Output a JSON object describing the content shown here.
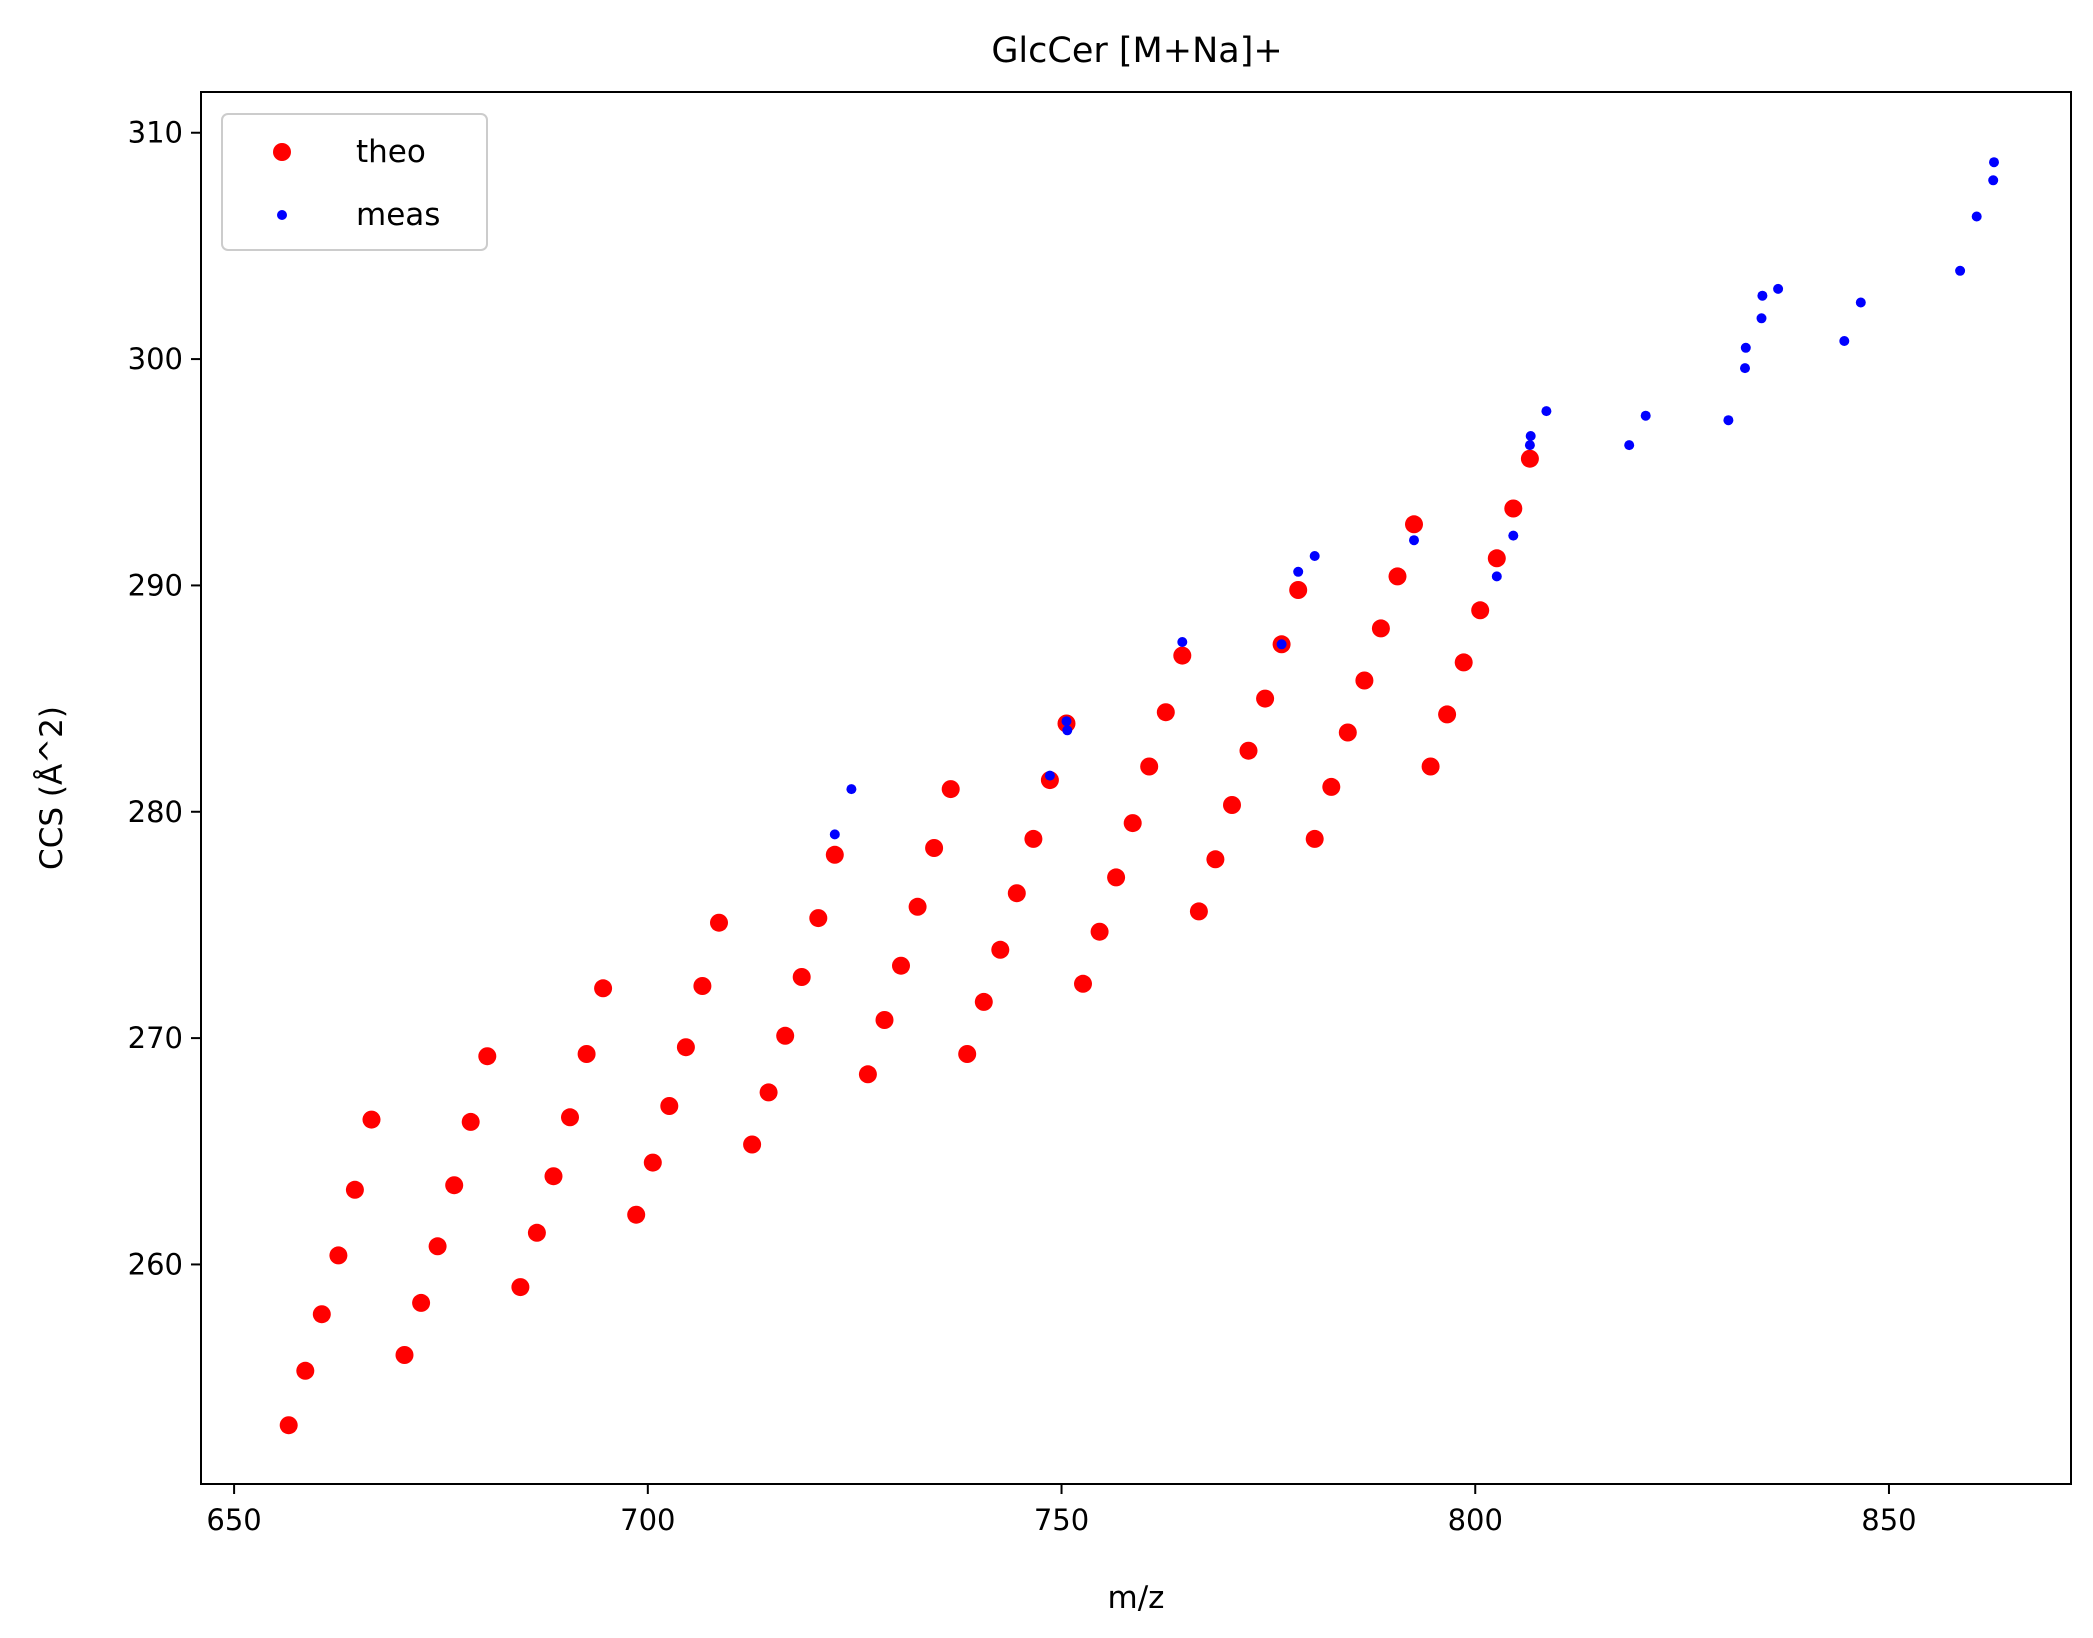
{
  "chart_data": {
    "type": "scatter",
    "title": "GlcCer [M+Na]+",
    "xlabel": "m/z",
    "ylabel": "CCS (Å^2)",
    "xlim": [
      646,
      872
    ],
    "ylim": [
      250.3,
      311.8
    ],
    "xticks": [
      650,
      700,
      750,
      800,
      850
    ],
    "yticks": [
      260,
      270,
      280,
      290,
      300,
      310
    ],
    "grid": false,
    "legend_position": "top-left",
    "series": [
      {
        "name": "theo",
        "color": "#ff0000",
        "marker_size": "large",
        "points": [
          [
            656.6,
            252.9
          ],
          [
            658.6,
            255.3
          ],
          [
            660.6,
            257.8
          ],
          [
            662.6,
            260.4
          ],
          [
            664.6,
            263.3
          ],
          [
            666.6,
            266.4
          ],
          [
            670.6,
            256.0
          ],
          [
            672.6,
            258.3
          ],
          [
            674.6,
            260.8
          ],
          [
            676.6,
            263.5
          ],
          [
            678.6,
            266.3
          ],
          [
            680.6,
            269.2
          ],
          [
            684.6,
            259.0
          ],
          [
            686.6,
            261.4
          ],
          [
            688.6,
            263.9
          ],
          [
            690.6,
            266.5
          ],
          [
            692.6,
            269.3
          ],
          [
            694.6,
            272.2
          ],
          [
            698.6,
            262.2
          ],
          [
            700.6,
            264.5
          ],
          [
            702.6,
            267.0
          ],
          [
            704.6,
            269.6
          ],
          [
            706.6,
            272.3
          ],
          [
            708.6,
            275.1
          ],
          [
            712.6,
            265.3
          ],
          [
            714.6,
            267.6
          ],
          [
            716.6,
            270.1
          ],
          [
            718.6,
            272.7
          ],
          [
            720.6,
            275.3
          ],
          [
            722.6,
            278.1
          ],
          [
            726.6,
            268.4
          ],
          [
            728.6,
            270.8
          ],
          [
            730.6,
            273.2
          ],
          [
            732.6,
            275.8
          ],
          [
            734.6,
            278.4
          ],
          [
            736.6,
            281.0
          ],
          [
            738.6,
            269.3
          ],
          [
            740.6,
            271.6
          ],
          [
            742.6,
            273.9
          ],
          [
            744.6,
            276.4
          ],
          [
            746.6,
            278.8
          ],
          [
            748.6,
            281.4
          ],
          [
            750.6,
            283.9
          ],
          [
            752.6,
            272.4
          ],
          [
            754.6,
            274.7
          ],
          [
            756.6,
            277.1
          ],
          [
            758.6,
            279.5
          ],
          [
            760.6,
            282.0
          ],
          [
            762.6,
            284.4
          ],
          [
            764.6,
            286.9
          ],
          [
            766.6,
            275.6
          ],
          [
            768.6,
            277.9
          ],
          [
            770.6,
            280.3
          ],
          [
            772.6,
            282.7
          ],
          [
            774.6,
            285.0
          ],
          [
            776.6,
            287.4
          ],
          [
            778.6,
            289.8
          ],
          [
            780.6,
            278.8
          ],
          [
            782.6,
            281.1
          ],
          [
            784.6,
            283.5
          ],
          [
            786.6,
            285.8
          ],
          [
            788.6,
            288.1
          ],
          [
            790.6,
            290.4
          ],
          [
            792.6,
            292.7
          ],
          [
            794.6,
            282.0
          ],
          [
            796.6,
            284.3
          ],
          [
            798.6,
            286.6
          ],
          [
            800.6,
            288.9
          ],
          [
            802.6,
            291.2
          ],
          [
            804.6,
            293.4
          ],
          [
            806.6,
            295.6
          ]
        ]
      },
      {
        "name": "meas",
        "color": "#0000ff",
        "marker_size": "small",
        "points": [
          [
            722.6,
            279.0
          ],
          [
            724.6,
            281.0
          ],
          [
            748.6,
            281.6
          ],
          [
            750.6,
            284.0
          ],
          [
            750.7,
            283.6
          ],
          [
            764.6,
            287.5
          ],
          [
            776.6,
            287.4
          ],
          [
            778.6,
            290.6
          ],
          [
            780.6,
            291.3
          ],
          [
            792.6,
            292.0
          ],
          [
            802.6,
            290.4
          ],
          [
            804.6,
            292.2
          ],
          [
            806.6,
            296.2
          ],
          [
            806.7,
            296.6
          ],
          [
            808.6,
            297.7
          ],
          [
            818.6,
            296.2
          ],
          [
            820.6,
            297.5
          ],
          [
            830.6,
            297.3
          ],
          [
            832.6,
            299.6
          ],
          [
            832.7,
            300.5
          ],
          [
            834.6,
            301.8
          ],
          [
            834.7,
            302.8
          ],
          [
            836.6,
            303.1
          ],
          [
            844.6,
            300.8
          ],
          [
            846.6,
            302.5
          ],
          [
            858.6,
            303.9
          ],
          [
            860.6,
            306.3
          ],
          [
            862.6,
            307.9
          ],
          [
            862.7,
            308.7
          ]
        ]
      }
    ]
  }
}
